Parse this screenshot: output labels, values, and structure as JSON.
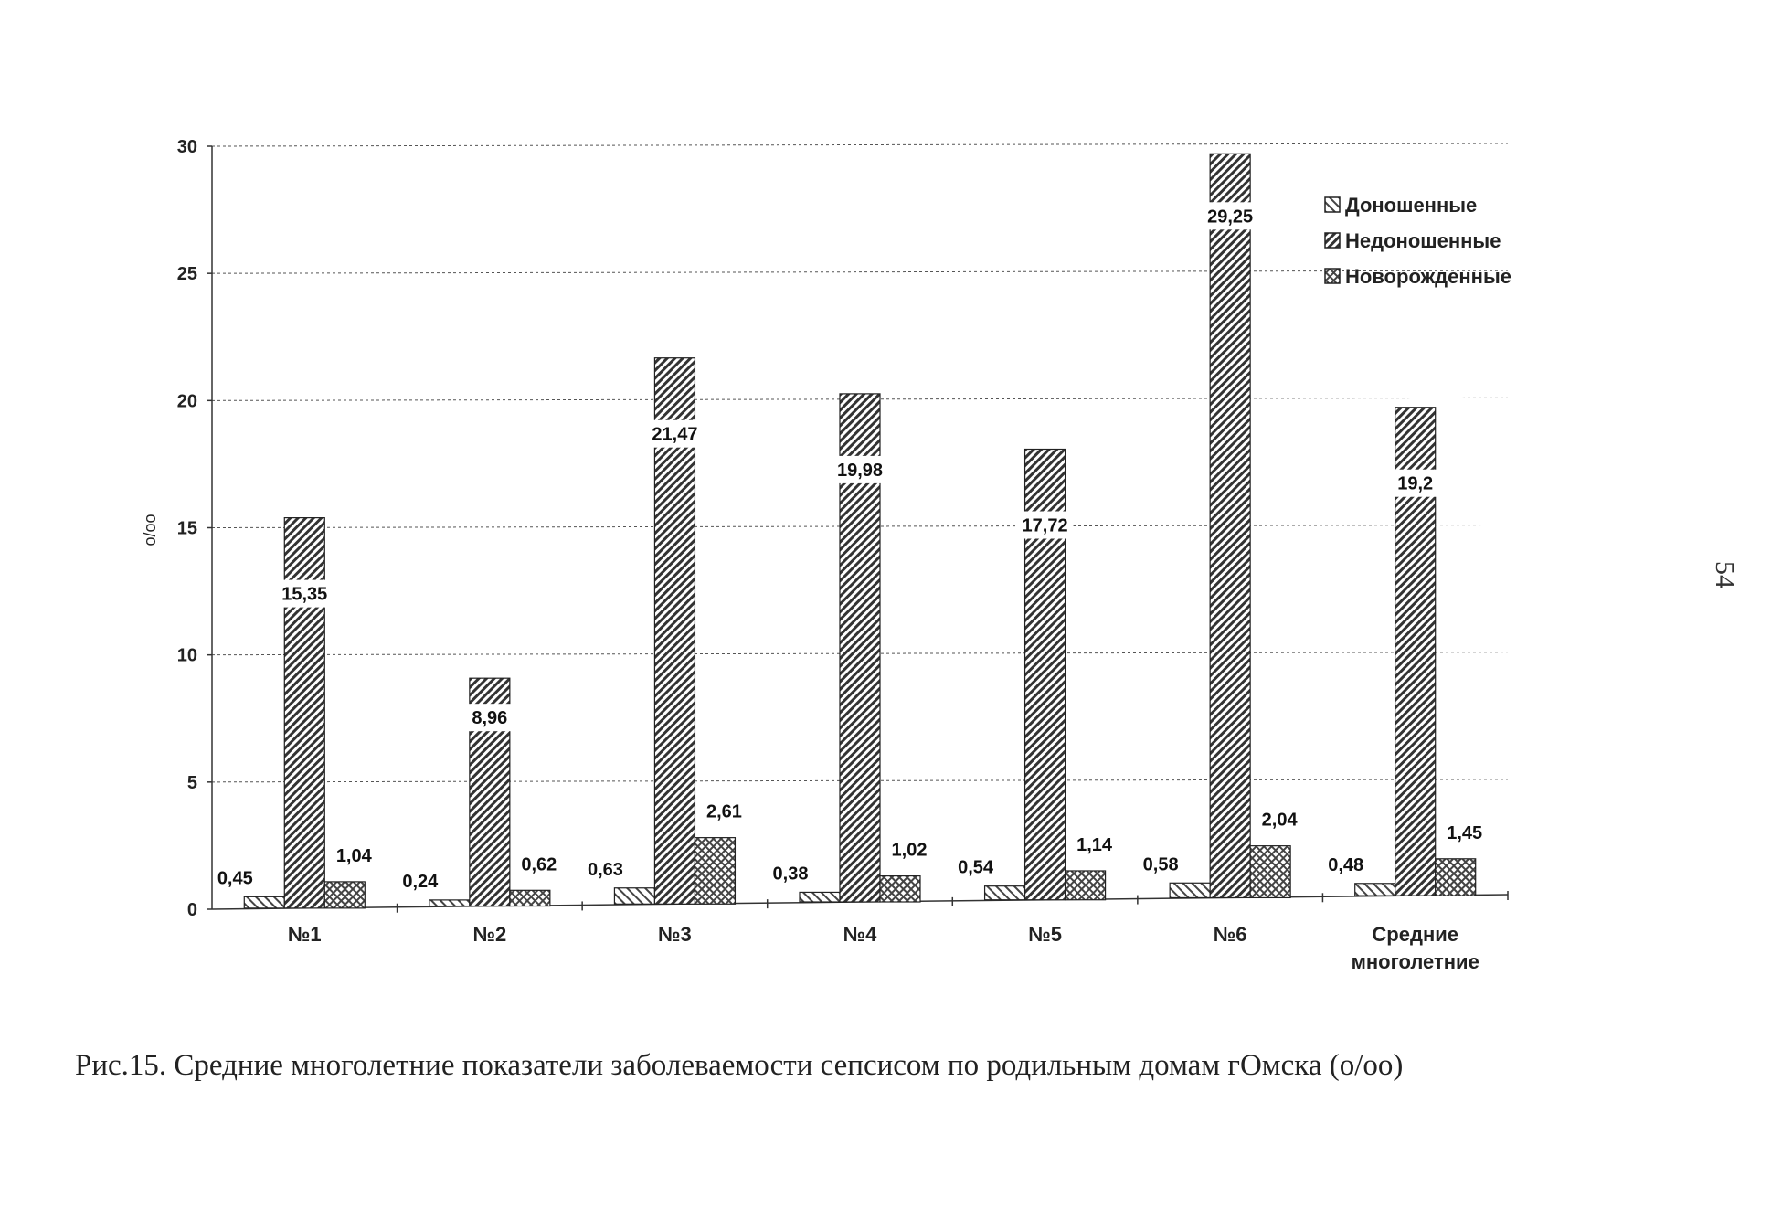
{
  "chart_data": {
    "type": "bar",
    "title": "",
    "xlabel": "",
    "ylabel": "o/oo",
    "ylim": [
      0,
      30
    ],
    "yticks": [
      0,
      5,
      10,
      15,
      20,
      25,
      30
    ],
    "grid": true,
    "legend_position": "top-right",
    "categories": [
      "№1",
      "№2",
      "№3",
      "№4",
      "№5",
      "№6",
      "Средние многолетние"
    ],
    "series": [
      {
        "name": "Доношенные",
        "values": [
          0.45,
          0.24,
          0.63,
          0.38,
          0.54,
          0.58,
          0.48
        ],
        "labels": [
          "0,45",
          "0,24",
          "0,63",
          "0,38",
          "0,54",
          "0,58",
          "0,48"
        ],
        "pattern": "back-hatch"
      },
      {
        "name": "Недоношенные",
        "values": [
          15.35,
          8.96,
          21.47,
          19.98,
          17.72,
          29.25,
          19.2
        ],
        "labels": [
          "15,35",
          "8,96",
          "21,47",
          "19,98",
          "17,72",
          "29,25",
          "19,2"
        ],
        "pattern": "fwd-hatch"
      },
      {
        "name": "Новорожденные",
        "values": [
          1.04,
          0.62,
          2.61,
          1.02,
          1.14,
          2.04,
          1.45
        ],
        "labels": [
          "1,04",
          "0,62",
          "2,61",
          "1,02",
          "1,14",
          "2,04",
          "1,45"
        ],
        "pattern": "crosshatch"
      }
    ]
  },
  "caption": "Рис.15.  Средние многолетние показатели заболеваемости сепсисом по родильным домам гОмска (о/оо)",
  "page_number": "54"
}
